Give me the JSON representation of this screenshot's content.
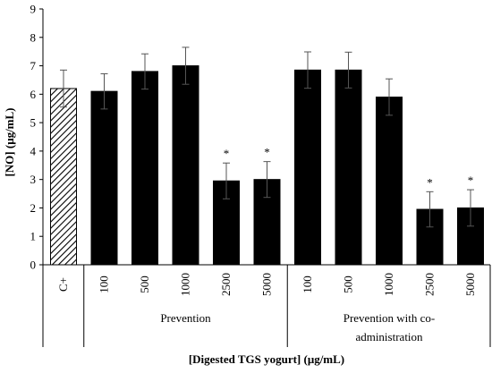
{
  "chart_data": {
    "type": "bar",
    "ylabel": "[NO] (μg/mL)",
    "xlabel": "[Digested TGS yogurt] (μg/mL)",
    "ylim": [
      0,
      9
    ],
    "yticks": [
      0,
      1,
      2,
      3,
      4,
      5,
      6,
      7,
      8,
      9
    ],
    "grid": false,
    "categories": [
      "C+",
      "100",
      "500",
      "1000",
      "2500",
      "5000",
      "100",
      "500",
      "1000",
      "2500",
      "5000"
    ],
    "values": [
      6.2,
      6.1,
      6.8,
      7.0,
      2.95,
      3.0,
      6.85,
      6.85,
      5.9,
      1.95,
      2.0
    ],
    "errors": [
      0.65,
      0.62,
      0.62,
      0.65,
      0.63,
      0.63,
      0.64,
      0.63,
      0.64,
      0.62,
      0.64
    ],
    "significant": [
      false,
      false,
      false,
      false,
      true,
      true,
      false,
      false,
      false,
      true,
      true
    ],
    "significance_marker": "*",
    "bar_styles": [
      "hatched",
      "solid",
      "solid",
      "solid",
      "solid",
      "solid",
      "solid",
      "solid",
      "solid",
      "solid",
      "solid"
    ],
    "groups": [
      {
        "label": "",
        "indices": [
          0
        ]
      },
      {
        "label": "Prevention",
        "indices": [
          1,
          2,
          3,
          4,
          5
        ]
      },
      {
        "label_lines": [
          "Prevention with co-",
          "administration"
        ],
        "indices": [
          6,
          7,
          8,
          9,
          10
        ]
      }
    ],
    "colors": {
      "bar": "#000000",
      "hatch_bg": "#ffffff"
    }
  }
}
